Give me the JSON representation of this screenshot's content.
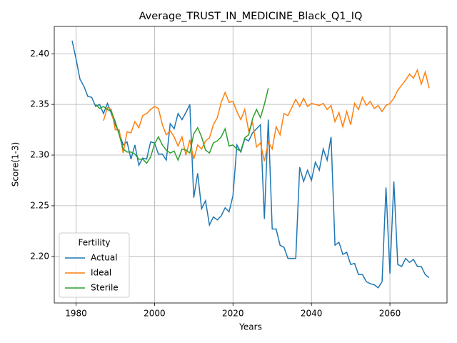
{
  "chart_data": {
    "type": "line",
    "title": "Average_TRUST_IN_MEDICINE_Black_Q1_IQ",
    "x_label": "Years",
    "y_label": "Score(1-3)",
    "x": [
      1979,
      1980,
      1981,
      1982,
      1983,
      1984,
      1985,
      1986,
      1987,
      1988,
      1989,
      1990,
      1991,
      1992,
      1993,
      1994,
      1995,
      1996,
      1997,
      1998,
      1999,
      2000,
      2001,
      2002,
      2003,
      2004,
      2005,
      2006,
      2007,
      2008,
      2009,
      2010,
      2011,
      2012,
      2013,
      2014,
      2015,
      2016,
      2017,
      2018,
      2019,
      2020,
      2021,
      2022,
      2023,
      2024,
      2025,
      2026,
      2027,
      2028,
      2029,
      2030,
      2031,
      2032,
      2033,
      2034,
      2035,
      2036,
      2037,
      2038,
      2039,
      2040,
      2041,
      2042,
      2043,
      2044,
      2045,
      2046,
      2047,
      2048,
      2049,
      2050,
      2051,
      2052,
      2053,
      2054,
      2055,
      2056,
      2057,
      2058,
      2059,
      2060,
      2061,
      2062,
      2063,
      2064,
      2065,
      2066,
      2067,
      2068,
      2069,
      2070
    ],
    "series": [
      {
        "name": "Actual",
        "color": "#1f77b4",
        "values": [
          2.413,
          2.395,
          2.375,
          2.368,
          2.358,
          2.357,
          2.348,
          2.35,
          2.341,
          2.351,
          2.341,
          2.33,
          2.322,
          2.31,
          2.313,
          2.296,
          2.31,
          2.29,
          2.297,
          2.296,
          2.313,
          2.312,
          2.301,
          2.301,
          2.295,
          2.331,
          2.326,
          2.341,
          2.335,
          2.342,
          2.35,
          2.258,
          2.282,
          2.247,
          2.255,
          2.231,
          2.239,
          2.236,
          2.24,
          2.248,
          2.244,
          2.26,
          2.31,
          2.303,
          2.316,
          2.314,
          2.322,
          2.326,
          2.33,
          2.237,
          2.335,
          2.227,
          2.227,
          2.211,
          2.209,
          2.198,
          2.198,
          2.198,
          2.288,
          2.274,
          2.285,
          2.275,
          2.293,
          2.285,
          2.306,
          2.295,
          2.318,
          2.211,
          2.214,
          2.202,
          2.204,
          2.192,
          2.193,
          2.182,
          2.182,
          2.175,
          2.173,
          2.172,
          2.169,
          2.175,
          2.268,
          2.183,
          2.274,
          2.192,
          2.19,
          2.198,
          2.194,
          2.197,
          2.19,
          2.19,
          2.182,
          2.179
        ]
      },
      {
        "name": "Ideal",
        "color": "#ff7f0e",
        "values": [
          null,
          null,
          null,
          null,
          null,
          null,
          null,
          null,
          2.334,
          2.347,
          2.345,
          2.325,
          2.325,
          2.302,
          2.323,
          2.322,
          2.333,
          2.327,
          2.339,
          2.341,
          2.345,
          2.348,
          2.346,
          2.33,
          2.32,
          2.324,
          2.318,
          2.309,
          2.318,
          2.3,
          2.315,
          2.296,
          2.31,
          2.306,
          2.314,
          2.317,
          2.33,
          2.337,
          2.352,
          2.362,
          2.352,
          2.353,
          2.343,
          2.335,
          2.345,
          2.324,
          2.332,
          2.308,
          2.312,
          2.294,
          2.313,
          2.306,
          2.328,
          2.32,
          2.341,
          2.339,
          2.347,
          2.355,
          2.348,
          2.356,
          2.348,
          2.351,
          2.35,
          2.349,
          2.351,
          2.345,
          2.349,
          2.333,
          2.342,
          2.328,
          2.343,
          2.33,
          2.351,
          2.345,
          2.357,
          2.349,
          2.353,
          2.346,
          2.349,
          2.343,
          2.349,
          2.351,
          2.356,
          2.364,
          2.369,
          2.374,
          2.38,
          2.376,
          2.384,
          2.37,
          2.382,
          2.366
        ]
      },
      {
        "name": "Sterile",
        "color": "#2ca02c",
        "values": [
          null,
          null,
          null,
          null,
          null,
          null,
          2.35,
          2.346,
          2.348,
          2.345,
          2.343,
          2.333,
          2.32,
          2.306,
          2.303,
          2.303,
          2.301,
          2.296,
          2.296,
          2.292,
          2.298,
          2.311,
          2.318,
          2.31,
          2.305,
          2.302,
          2.304,
          2.295,
          2.306,
          2.305,
          2.302,
          2.321,
          2.327,
          2.318,
          2.305,
          2.302,
          2.312,
          2.314,
          2.318,
          2.326,
          2.309,
          2.31,
          2.306,
          2.304,
          2.317,
          2.32,
          2.336,
          2.345,
          2.337,
          2.35,
          2.366,
          null,
          null,
          null,
          null,
          null,
          null,
          null,
          null,
          null,
          null,
          null,
          null,
          null,
          null,
          null,
          null,
          null,
          null,
          null,
          null,
          null,
          null,
          null,
          null,
          null,
          null,
          null,
          null,
          null,
          null,
          null,
          null,
          null,
          null,
          null,
          null,
          null,
          null,
          null,
          null,
          null
        ]
      }
    ],
    "xlim": [
      1974.45,
      2074.55
    ],
    "xticks": [
      1980,
      2000,
      2020,
      2040,
      2060
    ],
    "ylim": [
      2.154,
      2.427
    ],
    "yticks": [
      {
        "value": 2.2,
        "label": "2.20"
      },
      2.25,
      {
        "value": 2.3,
        "label": "2.30"
      },
      2.35,
      {
        "value": 2.4,
        "label": "2.40"
      }
    ],
    "grid": true,
    "legend_title": "Fertility",
    "legend_position": "lower left"
  }
}
